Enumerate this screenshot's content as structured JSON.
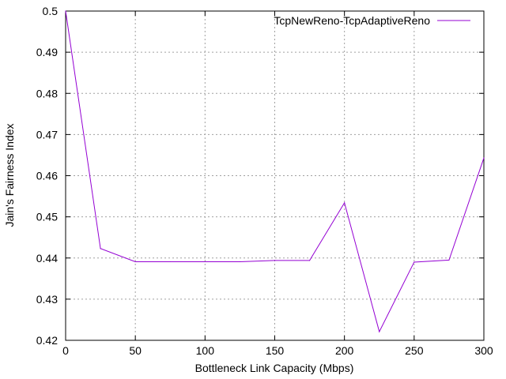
{
  "chart_data": {
    "type": "line",
    "xlabel": "Bottleneck Link Capacity (Mbps)",
    "ylabel": "Jain's Fairness Index",
    "xlim": [
      0,
      300
    ],
    "ylim": [
      0.42,
      0.5
    ],
    "xticks": [
      0,
      50,
      100,
      150,
      200,
      250,
      300
    ],
    "yticks": [
      0.42,
      0.43,
      0.44,
      0.45,
      0.46,
      0.47,
      0.48,
      0.49,
      0.5
    ],
    "xtick_labels": [
      "0",
      "50",
      "100",
      "150",
      "200",
      "250",
      "300"
    ],
    "ytick_labels": [
      "0.42",
      "0.43",
      "0.44",
      "0.45",
      "0.46",
      "0.47",
      "0.48",
      "0.49",
      "0.5"
    ],
    "grid": true,
    "legend_position": "top-right",
    "series": [
      {
        "name": "TcpNewReno-TcpAdaptiveReno",
        "color": "#9400d3",
        "x": [
          0,
          25,
          50,
          75,
          100,
          125,
          150,
          175,
          200,
          225,
          250,
          275,
          300
        ],
        "y": [
          0.5,
          0.4423,
          0.4391,
          0.4391,
          0.4391,
          0.4391,
          0.4394,
          0.4394,
          0.4534,
          0.4221,
          0.439,
          0.4395,
          0.4643
        ]
      }
    ]
  }
}
